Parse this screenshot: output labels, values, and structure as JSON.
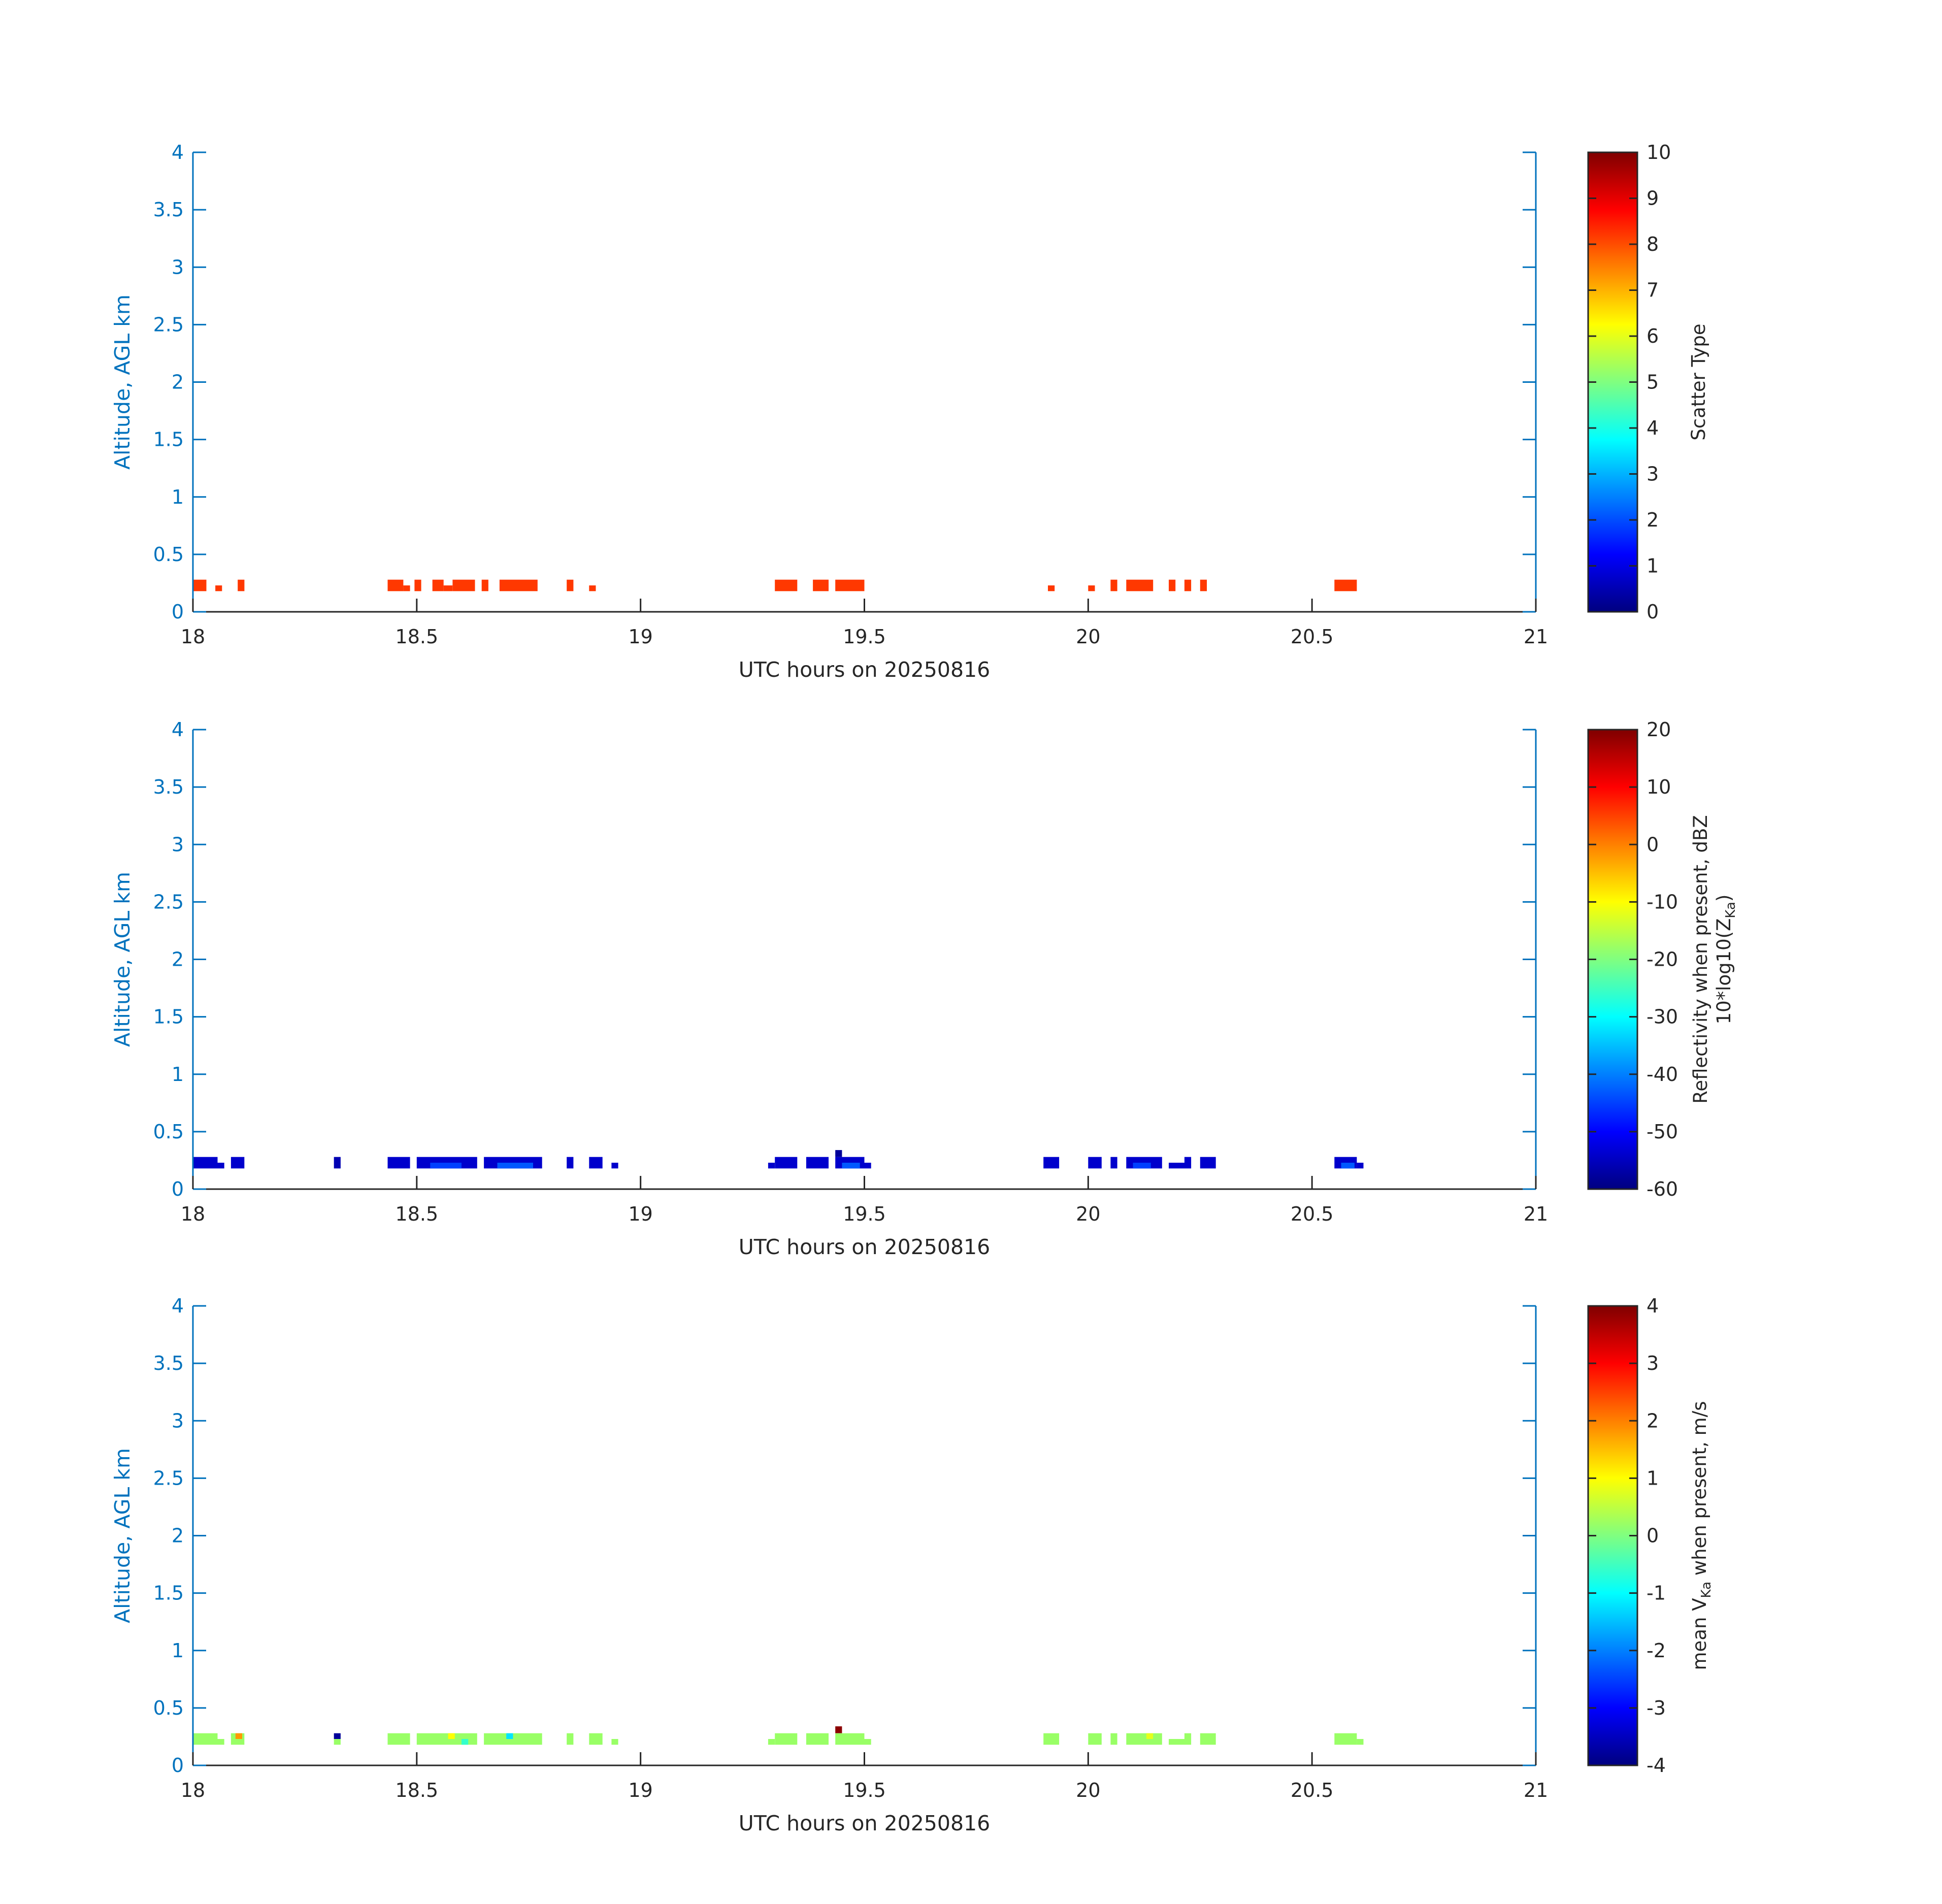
{
  "chart_data": [
    {
      "type": "heatmap",
      "title": "",
      "xlabel": "UTC hours on 20250816",
      "ylabel": "Altitude, AGL km",
      "xlim": [
        18,
        21
      ],
      "ylim": [
        0,
        4
      ],
      "xticks": [
        "18",
        "18.5",
        "19",
        "19.5",
        "20",
        "20.5",
        "21"
      ],
      "yticks": [
        "0",
        "0.5",
        "1",
        "1.5",
        "2",
        "2.5",
        "3",
        "3.5",
        "4"
      ],
      "colorbar": {
        "label": "Scatter Type",
        "range": [
          0,
          10
        ],
        "ticks": [
          "0",
          "1",
          "2",
          "3",
          "4",
          "5",
          "6",
          "7",
          "8",
          "9",
          "10"
        ]
      },
      "colormap": "jet",
      "bin_width_hours": 0.005,
      "cells": [
        {
          "x0": 18.0,
          "x1": 18.03,
          "y0": 0.18,
          "y1": 0.28,
          "v": 8.2
        },
        {
          "x0": 18.05,
          "x1": 18.065,
          "y0": 0.18,
          "y1": 0.23,
          "v": 8.2
        },
        {
          "x0": 18.1,
          "x1": 18.115,
          "y0": 0.18,
          "y1": 0.28,
          "v": 8.2
        },
        {
          "x0": 18.435,
          "x1": 18.47,
          "y0": 0.18,
          "y1": 0.28,
          "v": 8.2
        },
        {
          "x0": 18.47,
          "x1": 18.485,
          "y0": 0.18,
          "y1": 0.23,
          "v": 8.2
        },
        {
          "x0": 18.495,
          "x1": 18.51,
          "y0": 0.18,
          "y1": 0.28,
          "v": 8.2
        },
        {
          "x0": 18.535,
          "x1": 18.56,
          "y0": 0.18,
          "y1": 0.28,
          "v": 8.2
        },
        {
          "x0": 18.56,
          "x1": 18.58,
          "y0": 0.18,
          "y1": 0.23,
          "v": 8.2
        },
        {
          "x0": 18.58,
          "x1": 18.63,
          "y0": 0.18,
          "y1": 0.28,
          "v": 8.2
        },
        {
          "x0": 18.645,
          "x1": 18.66,
          "y0": 0.18,
          "y1": 0.28,
          "v": 8.2
        },
        {
          "x0": 18.685,
          "x1": 18.77,
          "y0": 0.18,
          "y1": 0.28,
          "v": 8.2
        },
        {
          "x0": 18.835,
          "x1": 18.85,
          "y0": 0.18,
          "y1": 0.28,
          "v": 8.2
        },
        {
          "x0": 18.885,
          "x1": 18.9,
          "y0": 0.18,
          "y1": 0.23,
          "v": 8.2
        },
        {
          "x0": 19.3,
          "x1": 19.35,
          "y0": 0.18,
          "y1": 0.28,
          "v": 8.2
        },
        {
          "x0": 19.385,
          "x1": 19.42,
          "y0": 0.18,
          "y1": 0.28,
          "v": 8.2
        },
        {
          "x0": 19.435,
          "x1": 19.5,
          "y0": 0.18,
          "y1": 0.28,
          "v": 8.2
        },
        {
          "x0": 19.91,
          "x1": 19.925,
          "y0": 0.18,
          "y1": 0.23,
          "v": 8.2
        },
        {
          "x0": 20.0,
          "x1": 20.015,
          "y0": 0.18,
          "y1": 0.23,
          "v": 8.2
        },
        {
          "x0": 20.05,
          "x1": 20.065,
          "y0": 0.18,
          "y1": 0.28,
          "v": 8.2
        },
        {
          "x0": 20.085,
          "x1": 20.145,
          "y0": 0.18,
          "y1": 0.28,
          "v": 8.2
        },
        {
          "x0": 20.18,
          "x1": 20.195,
          "y0": 0.18,
          "y1": 0.28,
          "v": 8.2
        },
        {
          "x0": 20.215,
          "x1": 20.23,
          "y0": 0.18,
          "y1": 0.28,
          "v": 8.2
        },
        {
          "x0": 20.25,
          "x1": 20.265,
          "y0": 0.18,
          "y1": 0.28,
          "v": 8.2
        },
        {
          "x0": 20.55,
          "x1": 20.6,
          "y0": 0.18,
          "y1": 0.28,
          "v": 8.2
        }
      ]
    },
    {
      "type": "heatmap",
      "title": "",
      "xlabel": "UTC hours on 20250816",
      "ylabel": "Altitude, AGL km",
      "xlim": [
        18,
        21
      ],
      "ylim": [
        0,
        4
      ],
      "xticks": [
        "18",
        "18.5",
        "19",
        "19.5",
        "20",
        "20.5",
        "21"
      ],
      "yticks": [
        "0",
        "0.5",
        "1",
        "1.5",
        "2",
        "2.5",
        "3",
        "3.5",
        "4"
      ],
      "colorbar": {
        "label": "Reflectivity when present, dBZ",
        "label2_main": "10*log10(Z",
        "label2_sub": "Ka",
        "label2_end": ")",
        "range": [
          -60,
          20
        ],
        "ticks": [
          "-60",
          "-50",
          "-40",
          "-30",
          "-20",
          "-10",
          "0",
          "10",
          "20"
        ]
      },
      "colormap": "jet",
      "cells": [
        {
          "x0": 18.0,
          "x1": 18.055,
          "y0": 0.18,
          "y1": 0.28,
          "v": -54
        },
        {
          "x0": 18.055,
          "x1": 18.07,
          "y0": 0.18,
          "y1": 0.23,
          "v": -54
        },
        {
          "x0": 18.085,
          "x1": 18.115,
          "y0": 0.18,
          "y1": 0.28,
          "v": -54
        },
        {
          "x0": 18.315,
          "x1": 18.33,
          "y0": 0.18,
          "y1": 0.28,
          "v": -56
        },
        {
          "x0": 18.435,
          "x1": 18.485,
          "y0": 0.18,
          "y1": 0.28,
          "v": -54
        },
        {
          "x0": 18.5,
          "x1": 18.635,
          "y0": 0.18,
          "y1": 0.28,
          "v": -54
        },
        {
          "x0": 18.53,
          "x1": 18.6,
          "y0": 0.18,
          "y1": 0.23,
          "v": -45
        },
        {
          "x0": 18.65,
          "x1": 18.78,
          "y0": 0.18,
          "y1": 0.28,
          "v": -54
        },
        {
          "x0": 18.68,
          "x1": 18.76,
          "y0": 0.18,
          "y1": 0.23,
          "v": -43
        },
        {
          "x0": 18.835,
          "x1": 18.85,
          "y0": 0.18,
          "y1": 0.28,
          "v": -54
        },
        {
          "x0": 18.885,
          "x1": 18.915,
          "y0": 0.18,
          "y1": 0.28,
          "v": -54
        },
        {
          "x0": 18.935,
          "x1": 18.95,
          "y0": 0.18,
          "y1": 0.23,
          "v": -54
        },
        {
          "x0": 19.285,
          "x1": 19.3,
          "y0": 0.18,
          "y1": 0.23,
          "v": -54
        },
        {
          "x0": 19.3,
          "x1": 19.35,
          "y0": 0.18,
          "y1": 0.28,
          "v": -54
        },
        {
          "x0": 19.37,
          "x1": 19.42,
          "y0": 0.18,
          "y1": 0.28,
          "v": -54
        },
        {
          "x0": 19.435,
          "x1": 19.45,
          "y0": 0.28,
          "y1": 0.34,
          "v": -58
        },
        {
          "x0": 19.435,
          "x1": 19.5,
          "y0": 0.18,
          "y1": 0.28,
          "v": -54
        },
        {
          "x0": 19.45,
          "x1": 19.49,
          "y0": 0.18,
          "y1": 0.23,
          "v": -43
        },
        {
          "x0": 19.5,
          "x1": 19.515,
          "y0": 0.18,
          "y1": 0.23,
          "v": -54
        },
        {
          "x0": 19.9,
          "x1": 19.935,
          "y0": 0.18,
          "y1": 0.28,
          "v": -54
        },
        {
          "x0": 20.0,
          "x1": 20.03,
          "y0": 0.18,
          "y1": 0.28,
          "v": -54
        },
        {
          "x0": 20.05,
          "x1": 20.065,
          "y0": 0.18,
          "y1": 0.28,
          "v": -54
        },
        {
          "x0": 20.085,
          "x1": 20.165,
          "y0": 0.18,
          "y1": 0.28,
          "v": -54
        },
        {
          "x0": 20.1,
          "x1": 20.14,
          "y0": 0.18,
          "y1": 0.23,
          "v": -45
        },
        {
          "x0": 20.18,
          "x1": 20.23,
          "y0": 0.18,
          "y1": 0.23,
          "v": -54
        },
        {
          "x0": 20.215,
          "x1": 20.23,
          "y0": 0.23,
          "y1": 0.28,
          "v": -54
        },
        {
          "x0": 20.25,
          "x1": 20.285,
          "y0": 0.18,
          "y1": 0.28,
          "v": -54
        },
        {
          "x0": 20.55,
          "x1": 20.6,
          "y0": 0.18,
          "y1": 0.28,
          "v": -54
        },
        {
          "x0": 20.565,
          "x1": 20.595,
          "y0": 0.18,
          "y1": 0.23,
          "v": -43
        },
        {
          "x0": 20.6,
          "x1": 20.615,
          "y0": 0.18,
          "y1": 0.23,
          "v": -54
        }
      ]
    },
    {
      "type": "heatmap",
      "title": "",
      "xlabel": "UTC hours on 20250816",
      "ylabel": "Altitude, AGL km",
      "xlim": [
        18,
        21
      ],
      "ylim": [
        0,
        4
      ],
      "xticks": [
        "18",
        "18.5",
        "19",
        "19.5",
        "20",
        "20.5",
        "21"
      ],
      "yticks": [
        "0",
        "0.5",
        "1",
        "1.5",
        "2",
        "2.5",
        "3",
        "3.5",
        "4"
      ],
      "colorbar": {
        "label_main": "mean V",
        "label_sub": "Ka",
        "label_end": " when present, m/s",
        "range": [
          -4,
          4
        ],
        "ticks": [
          "-4",
          "-3",
          "-2",
          "-1",
          "0",
          "1",
          "2",
          "3",
          "4"
        ]
      },
      "colormap": "jet",
      "cells": [
        {
          "x0": 18.0,
          "x1": 18.055,
          "y0": 0.18,
          "y1": 0.28,
          "v": 0.2
        },
        {
          "x0": 18.055,
          "x1": 18.07,
          "y0": 0.18,
          "y1": 0.23,
          "v": 0.2
        },
        {
          "x0": 18.085,
          "x1": 18.115,
          "y0": 0.18,
          "y1": 0.28,
          "v": 0.2
        },
        {
          "x0": 18.095,
          "x1": 18.11,
          "y0": 0.23,
          "y1": 0.28,
          "v": 1.8
        },
        {
          "x0": 18.315,
          "x1": 18.33,
          "y0": 0.23,
          "y1": 0.28,
          "v": -3.8
        },
        {
          "x0": 18.315,
          "x1": 18.33,
          "y0": 0.18,
          "y1": 0.23,
          "v": 0.2
        },
        {
          "x0": 18.435,
          "x1": 18.485,
          "y0": 0.18,
          "y1": 0.28,
          "v": 0.2
        },
        {
          "x0": 18.5,
          "x1": 18.635,
          "y0": 0.18,
          "y1": 0.28,
          "v": 0.2
        },
        {
          "x0": 18.57,
          "x1": 18.585,
          "y0": 0.23,
          "y1": 0.28,
          "v": 1.0
        },
        {
          "x0": 18.6,
          "x1": 18.615,
          "y0": 0.18,
          "y1": 0.23,
          "v": -0.6
        },
        {
          "x0": 18.65,
          "x1": 18.78,
          "y0": 0.18,
          "y1": 0.28,
          "v": 0.2
        },
        {
          "x0": 18.7,
          "x1": 18.715,
          "y0": 0.23,
          "y1": 0.28,
          "v": -1.2
        },
        {
          "x0": 18.835,
          "x1": 18.85,
          "y0": 0.18,
          "y1": 0.28,
          "v": 0.2
        },
        {
          "x0": 18.885,
          "x1": 18.915,
          "y0": 0.18,
          "y1": 0.28,
          "v": 0.2
        },
        {
          "x0": 18.935,
          "x1": 18.95,
          "y0": 0.18,
          "y1": 0.23,
          "v": 0.2
        },
        {
          "x0": 19.285,
          "x1": 19.3,
          "y0": 0.18,
          "y1": 0.23,
          "v": 0.2
        },
        {
          "x0": 19.3,
          "x1": 19.35,
          "y0": 0.18,
          "y1": 0.28,
          "v": 0.2
        },
        {
          "x0": 19.37,
          "x1": 19.42,
          "y0": 0.18,
          "y1": 0.28,
          "v": 0.2
        },
        {
          "x0": 19.435,
          "x1": 19.45,
          "y0": 0.28,
          "y1": 0.34,
          "v": 3.9
        },
        {
          "x0": 19.435,
          "x1": 19.5,
          "y0": 0.18,
          "y1": 0.28,
          "v": 0.2
        },
        {
          "x0": 19.5,
          "x1": 19.515,
          "y0": 0.18,
          "y1": 0.23,
          "v": 0.2
        },
        {
          "x0": 19.9,
          "x1": 19.935,
          "y0": 0.18,
          "y1": 0.28,
          "v": 0.2
        },
        {
          "x0": 20.0,
          "x1": 20.03,
          "y0": 0.18,
          "y1": 0.28,
          "v": 0.2
        },
        {
          "x0": 20.05,
          "x1": 20.065,
          "y0": 0.18,
          "y1": 0.28,
          "v": 0.2
        },
        {
          "x0": 20.085,
          "x1": 20.165,
          "y0": 0.18,
          "y1": 0.28,
          "v": 0.2
        },
        {
          "x0": 20.13,
          "x1": 20.145,
          "y0": 0.23,
          "y1": 0.28,
          "v": 0.8
        },
        {
          "x0": 20.18,
          "x1": 20.23,
          "y0": 0.18,
          "y1": 0.23,
          "v": 0.2
        },
        {
          "x0": 20.215,
          "x1": 20.23,
          "y0": 0.23,
          "y1": 0.28,
          "v": 0.2
        },
        {
          "x0": 20.25,
          "x1": 20.285,
          "y0": 0.18,
          "y1": 0.28,
          "v": 0.2
        },
        {
          "x0": 20.55,
          "x1": 20.6,
          "y0": 0.18,
          "y1": 0.28,
          "v": 0.2
        },
        {
          "x0": 20.6,
          "x1": 20.615,
          "y0": 0.18,
          "y1": 0.23,
          "v": 0.2
        }
      ]
    }
  ]
}
